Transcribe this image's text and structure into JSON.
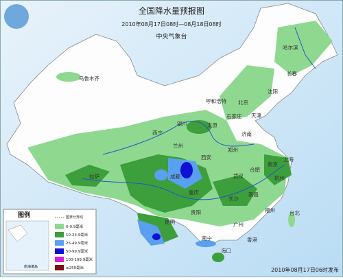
{
  "header": {
    "title": "全国降水量预报图",
    "period": "2010年08月17日08时—08月18日08时",
    "issuer": "中央气象台"
  },
  "cities": [
    "乌鲁木齐",
    "哈尔滨",
    "长春",
    "沈阳",
    "呼和浩特",
    "北京",
    "天津",
    "石家庄",
    "太原",
    "济南",
    "银川",
    "西宁",
    "兰州",
    "郑州",
    "西安",
    "合肥",
    "南京",
    "上海",
    "杭州",
    "武汉",
    "成都",
    "重庆",
    "拉萨",
    "长沙",
    "南昌",
    "贵阳",
    "昆明",
    "福州",
    "台北",
    "广州",
    "南宁",
    "香港",
    "海口"
  ],
  "legend": {
    "title": "图例",
    "boundary": "国界分界线",
    "inset": "南海诸岛",
    "items": [
      {
        "label": "0-9.9毫米",
        "color": "#8fd88f"
      },
      {
        "label": "10-24.9毫米",
        "color": "#3c9f3c"
      },
      {
        "label": "25-49.9毫米",
        "color": "#5aa0f0"
      },
      {
        "label": "50-99.9毫米",
        "color": "#1010d0"
      },
      {
        "label": "100-199.9毫米",
        "color": "#d020d0"
      },
      {
        "label": "≥250毫米",
        "color": "#7a1010"
      }
    ]
  },
  "footer": {
    "release": "2010年08月17日06时发布"
  }
}
